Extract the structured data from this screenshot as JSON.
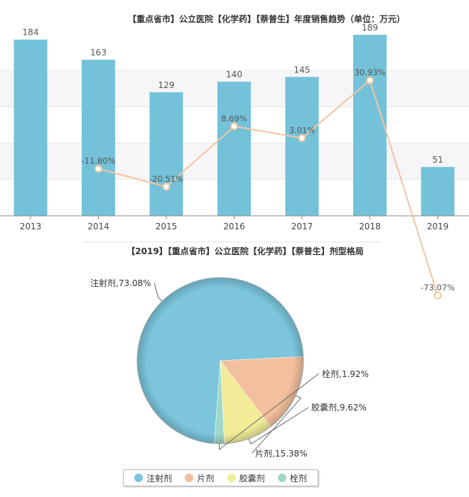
{
  "bar_chart_title": "【重点省市】公立医院【化学药】【萘普生】年度销售趋势（单位：万元）",
  "pie_chart_title": "【2019】【重点省市】公立医院【化学药】【萘普生】剂型格局",
  "chart_data": [
    {
      "type": "bar",
      "title": "【重点省市】公立医院【化学药】【萘普生】年度销售趋势（单位：万元）",
      "categories": [
        "2013",
        "2014",
        "2015",
        "2016",
        "2017",
        "2018",
        "2019"
      ],
      "series": [
        {
          "values": [
            184,
            163,
            129,
            140,
            145,
            189,
            51
          ],
          "color": "#73C2DA"
        },
        {
          "type": "line",
          "values": [
            null,
            -11.8,
            -20.51,
            8.69,
            3.01,
            30.93,
            -73.07
          ],
          "labels": [
            "",
            "-11.80%",
            "-20.51%",
            "8.69%",
            "3.01%",
            "30.93%",
            "-73.07%"
          ],
          "color": "#F4C49E"
        }
      ],
      "grid": true,
      "stripe_colors": [
        "#ffffff",
        "#F6F5F7"
      ]
    },
    {
      "type": "pie",
      "title": "【2019】【重点省市】公立医院【化学药】【萘普生】剂型格局",
      "slices": [
        {
          "name": "注射剂",
          "value": 73.08,
          "label": "注射剂,73.08%",
          "color": "#7CC5DC"
        },
        {
          "name": "片剂",
          "value": 15.38,
          "label": "片剂,15.38%",
          "color": "#F2C09E"
        },
        {
          "name": "胶囊剂",
          "value": 9.62,
          "label": "胶囊剂,9.62%",
          "color": "#F2EC98"
        },
        {
          "name": "栓剂",
          "value": 1.92,
          "label": "栓剂,1.92%",
          "color": "#9ED9C8"
        }
      ],
      "legend": "bottom-center"
    }
  ]
}
